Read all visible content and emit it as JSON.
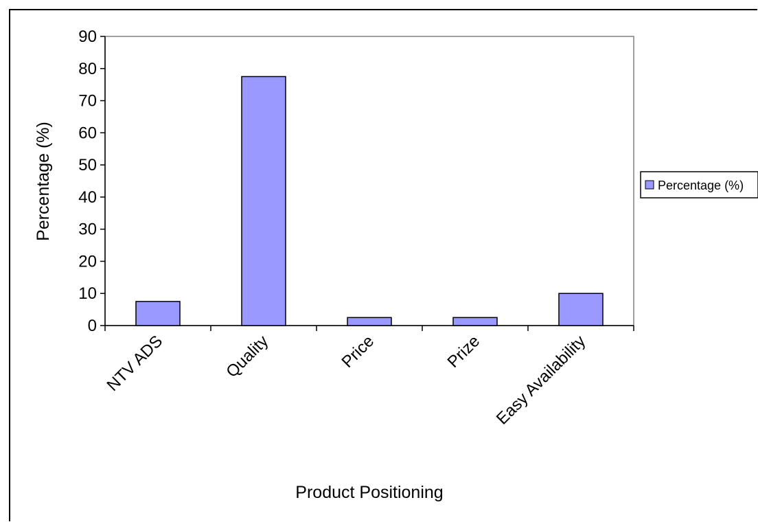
{
  "chart_data": {
    "type": "bar",
    "categories": [
      "NTV ADS",
      "Quality",
      "Price",
      "Prize",
      "Easy Availability"
    ],
    "series": [
      {
        "name": "Percentage (%)",
        "values": [
          7.5,
          77.5,
          2.5,
          2.5,
          10
        ]
      }
    ],
    "xlabel": "Product Positioning",
    "ylabel": "Percentage (%)",
    "ylim": [
      0,
      90
    ],
    "yticks": [
      0,
      10,
      20,
      30,
      40,
      50,
      60,
      70,
      80,
      90
    ],
    "grid": false,
    "legend_position": "right",
    "colors": {
      "bar_fill": "#9999ff",
      "bar_stroke": "#000000",
      "plot_border": "#808080"
    }
  }
}
